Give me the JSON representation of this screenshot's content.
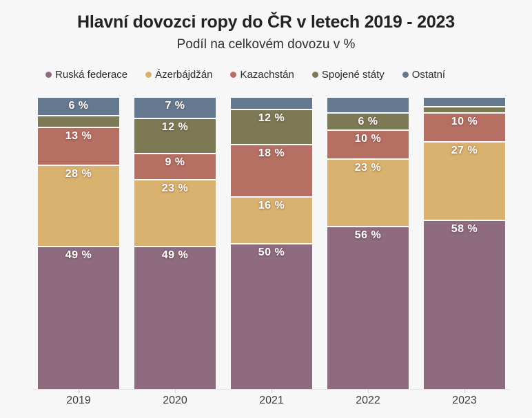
{
  "chart": {
    "title": "Hlavní dovozci ropy do ČR v letech 2019 - 2023",
    "subtitle": "Podíl na celkovém dovozu v %"
  },
  "chart_data": {
    "type": "bar",
    "stacked": true,
    "title": "Hlavní dovozci ropy do ČR v letech 2019 - 2023",
    "subtitle": "Podíl na celkovém dovozu v %",
    "xlabel": "",
    "ylabel": "Podíl na celkovém dovozu v %",
    "ylim": [
      0,
      100
    ],
    "grid": false,
    "legend_position": "top-left",
    "value_suffix": " %",
    "categories": [
      "2019",
      "2020",
      "2021",
      "2022",
      "2023"
    ],
    "series": [
      {
        "name": "Ruská federace",
        "color": "#8f6b80",
        "values": [
          49,
          49,
          50,
          56,
          58
        ],
        "labels": [
          "49 %",
          "49 %",
          "50 %",
          "56 %",
          "58 %"
        ]
      },
      {
        "name": "Ázerbájdžán",
        "color": "#d9b26f",
        "values": [
          28,
          23,
          16,
          23,
          27
        ],
        "labels": [
          "28 %",
          "23 %",
          "16 %",
          "23 %",
          "27 %"
        ]
      },
      {
        "name": "Kazachstán",
        "color": "#b56f63",
        "values": [
          13,
          9,
          18,
          10,
          10
        ],
        "labels": [
          "13 %",
          "9 %",
          "18 %",
          "10 %",
          "10 %"
        ]
      },
      {
        "name": "Spojené státy",
        "color": "#7c7954",
        "values": [
          4,
          12,
          12,
          6,
          2
        ],
        "labels": [
          "",
          "12 %",
          "12 %",
          "6 %",
          ""
        ]
      },
      {
        "name": "Ostatní",
        "color": "#64798f",
        "values": [
          6,
          7,
          4,
          5,
          3
        ],
        "labels": [
          "6 %",
          "7 %",
          "",
          "",
          ""
        ]
      }
    ]
  }
}
